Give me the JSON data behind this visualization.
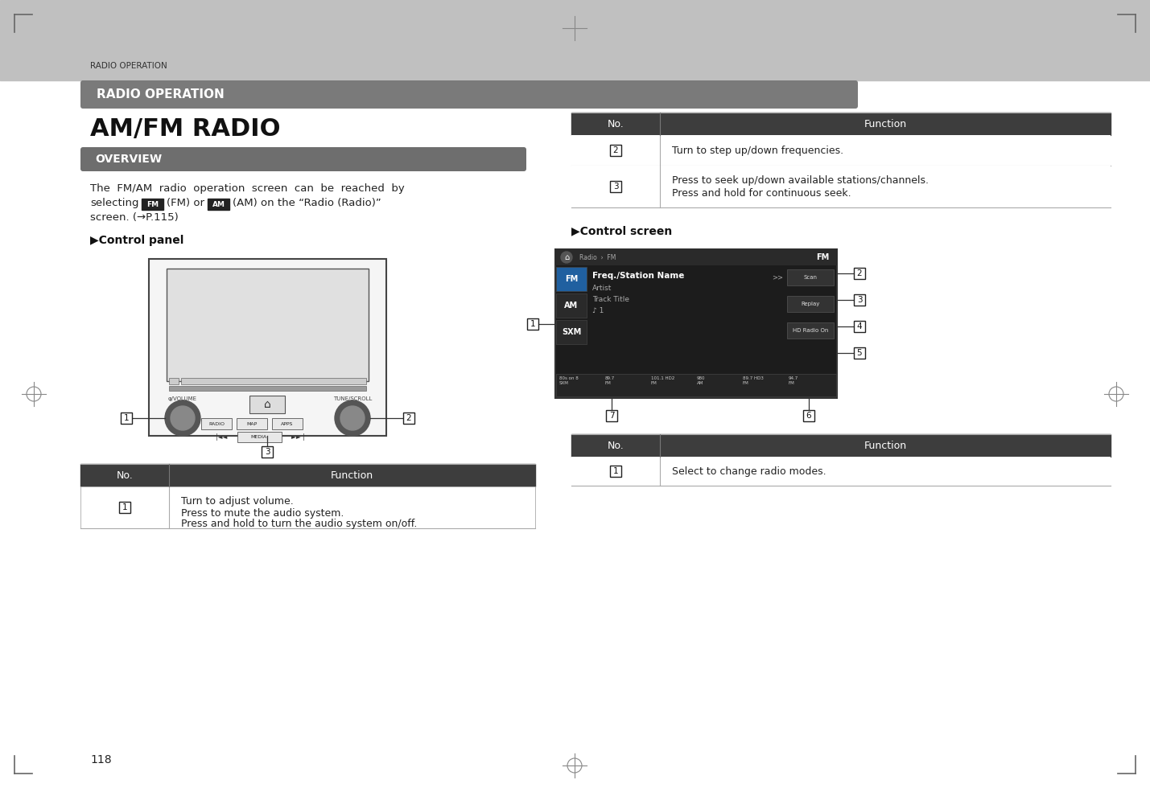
{
  "page_bg": "#ffffff",
  "top_bar_color": "#c0c0c0",
  "header_bar_color": "#7a7a7a",
  "table_header_color": "#3d3d3d",
  "overview_bar_color": "#6e6e6e",
  "page_number": "118",
  "header_small_text": "RADIO OPERATION",
  "header_banner_text": "RADIO OPERATION",
  "title_text": "AM/FM RADIO",
  "overview_text": "OVERVIEW",
  "control_panel_label": "▶Control panel",
  "control_screen_label": "▶Control screen"
}
